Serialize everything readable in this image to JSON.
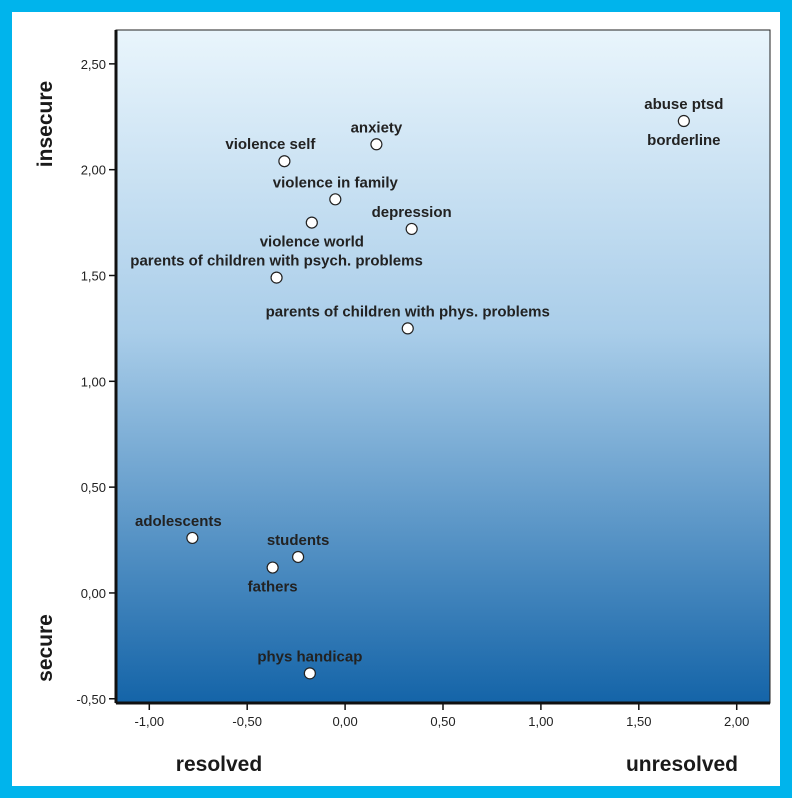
{
  "chart_data": {
    "type": "scatter",
    "x_tick_labels": [
      "-1,00",
      "-0,50",
      "0,00",
      "0,50",
      "1,00",
      "1,50",
      "2,00"
    ],
    "x_ticks": [
      -1.0,
      -0.5,
      0.0,
      0.5,
      1.0,
      1.5,
      2.0
    ],
    "y_tick_labels": [
      "-0,50",
      "0,00",
      "0,50",
      "1,00",
      "1,50",
      "2,00",
      "2,50"
    ],
    "y_ticks": [
      -0.5,
      0.0,
      0.5,
      1.0,
      1.5,
      2.0,
      2.5
    ],
    "xlim": [
      -1.17,
      2.17
    ],
    "ylim": [
      -0.52,
      2.66
    ],
    "y_axis_top_label": "insecure",
    "y_axis_bottom_label": "secure",
    "x_axis_left_label": "resolved",
    "x_axis_right_label": "unresolved",
    "grid": false,
    "background": "gradient light blue (top) to dark blue (bottom)",
    "colors": {
      "frame": "#00b4ec",
      "gradient_top": "#e9f5fc",
      "gradient_bottom": "#1464a8",
      "point_fill": "#ffffff"
    },
    "points": [
      {
        "label": "abuse ptsd",
        "x": 1.73,
        "y": 2.23,
        "label_pos": "above"
      },
      {
        "label": "borderline",
        "x": 1.73,
        "y": 2.23,
        "label_pos": "below"
      },
      {
        "label": "anxiety",
        "x": 0.16,
        "y": 2.12,
        "label_pos": "above"
      },
      {
        "label": "violence self",
        "x": -0.31,
        "y": 2.04,
        "label_pos": "above-left"
      },
      {
        "label": "violence in family",
        "x": -0.05,
        "y": 1.86,
        "label_pos": "above"
      },
      {
        "label": "depression",
        "x": 0.34,
        "y": 1.72,
        "label_pos": "above"
      },
      {
        "label": "violence world",
        "x": -0.17,
        "y": 1.75,
        "label_pos": "below"
      },
      {
        "label": "parents of children with psych. problems",
        "x": -0.35,
        "y": 1.49,
        "label_pos": "above"
      },
      {
        "label": "parents of children with phys. problems",
        "x": 0.32,
        "y": 1.25,
        "label_pos": "above"
      },
      {
        "label": "adolescents",
        "x": -0.78,
        "y": 0.26,
        "label_pos": "above-left"
      },
      {
        "label": "students",
        "x": -0.24,
        "y": 0.17,
        "label_pos": "above"
      },
      {
        "label": "fathers",
        "x": -0.37,
        "y": 0.12,
        "label_pos": "below"
      },
      {
        "label": "phys handicap",
        "x": -0.18,
        "y": -0.38,
        "label_pos": "above"
      }
    ]
  }
}
